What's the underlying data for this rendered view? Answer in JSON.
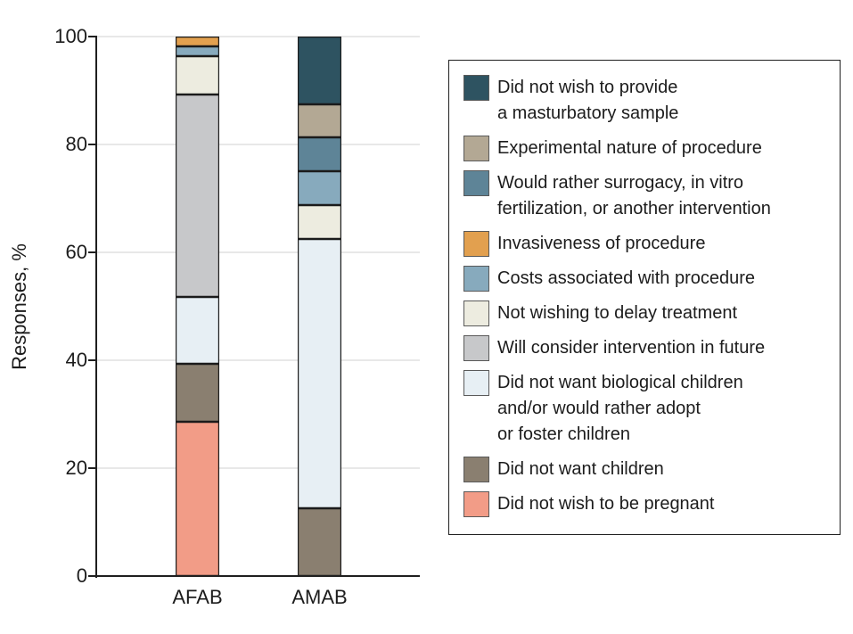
{
  "chart_data": {
    "type": "bar",
    "stacked": true,
    "orientation": "vertical",
    "title": "",
    "xlabel": "",
    "ylabel": "Responses, %",
    "ylim": [
      0,
      100
    ],
    "yticks": [
      0,
      20,
      40,
      60,
      80,
      100
    ],
    "grid": "horizontal",
    "legend_position": "right",
    "categories": [
      "AFAB",
      "AMAB"
    ],
    "series": [
      {
        "name": "Did not wish to provide a masturbatory sample",
        "label": "Did not wish to provide\na masturbatory sample",
        "color": "#2E5361",
        "values": [
          0,
          12.5
        ]
      },
      {
        "name": "Experimental nature of procedure",
        "label": "Experimental nature of procedure",
        "color": "#B3A894",
        "values": [
          0,
          6.25
        ]
      },
      {
        "name": "Would rather surrogacy, in vitro fertilization, or another intervention",
        "label": "Would rather surrogacy, in vitro\nfertilization, or another intervention",
        "color": "#5E8497",
        "values": [
          0,
          6.25
        ]
      },
      {
        "name": "Invasiveness of procedure",
        "label": "Invasiveness of procedure",
        "color": "#E2A04F",
        "values": [
          1.8,
          0
        ]
      },
      {
        "name": "Costs associated with procedure",
        "label": "Costs associated with procedure",
        "color": "#87AABD",
        "values": [
          1.8,
          6.25
        ]
      },
      {
        "name": "Not wishing to delay treatment",
        "label": "Not wishing to delay treatment",
        "color": "#EDECE0",
        "values": [
          7.1,
          6.25
        ]
      },
      {
        "name": "Will consider intervention in future",
        "label": "Will consider intervention in future",
        "color": "#C7C8CA",
        "values": [
          37.5,
          0
        ]
      },
      {
        "name": "Did not want biological children and/or would rather adopt or foster children",
        "label": "Did not want biological children\nand/or would rather adopt\nor foster children",
        "color": "#E7EFF4",
        "values": [
          12.5,
          50
        ]
      },
      {
        "name": "Did not want children",
        "label": "Did not want children",
        "color": "#8A7F70",
        "values": [
          10.7,
          12.5
        ]
      },
      {
        "name": "Did not wish to be pregnant",
        "label": "Did not wish to be pregnant",
        "color": "#F29C87",
        "values": [
          28.6,
          0
        ]
      }
    ]
  }
}
